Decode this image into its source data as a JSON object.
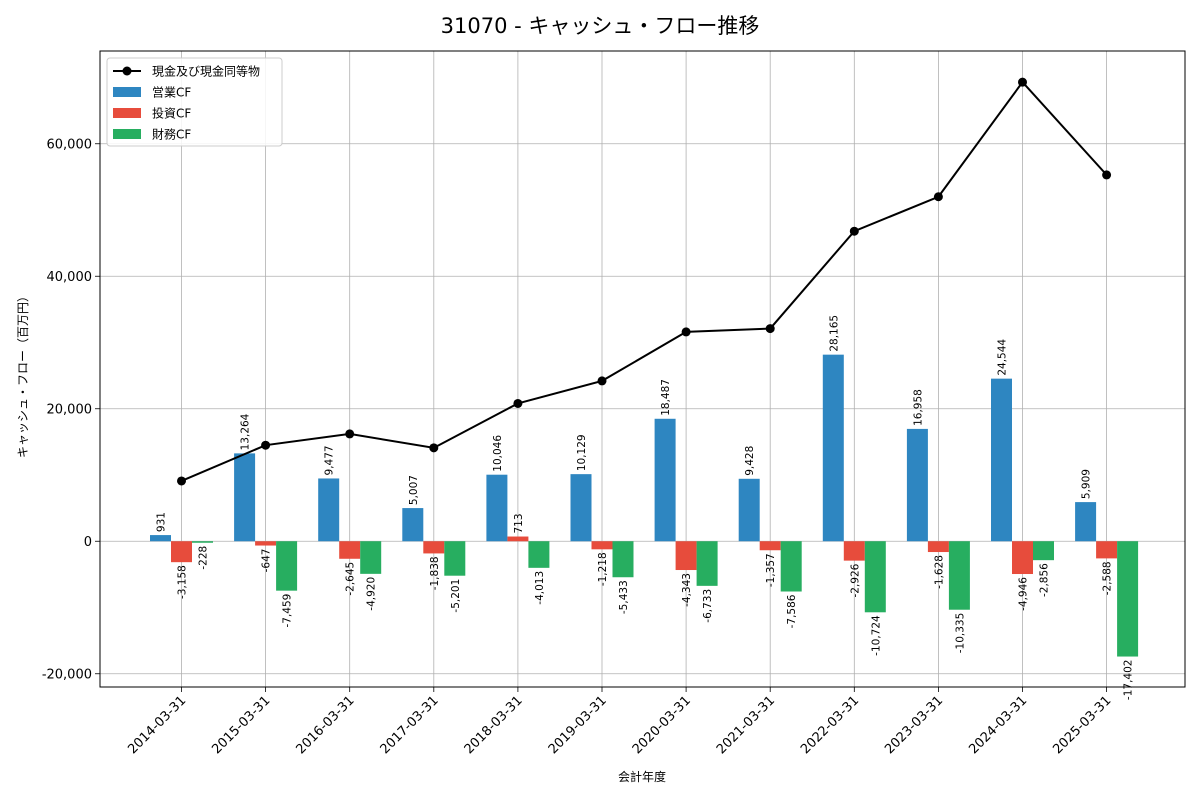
{
  "chart_data": {
    "type": "bar",
    "title": "31070 - キャッシュ・フロー推移",
    "xlabel": "会計年度",
    "ylabel": "キャッシュ・フロー（百万円）",
    "ylim": [
      -22000,
      74000
    ],
    "yticks": [
      -20000,
      0,
      20000,
      40000,
      60000
    ],
    "ytick_labels": [
      "-20,000",
      "0",
      "20,000",
      "40,000",
      "60,000"
    ],
    "grid": true,
    "legend_position": "top-left",
    "categories": [
      "2014-03-31",
      "2015-03-31",
      "2016-03-31",
      "2017-03-31",
      "2018-03-31",
      "2019-03-31",
      "2020-03-31",
      "2021-03-31",
      "2022-03-31",
      "2023-03-31",
      "2024-03-31",
      "2025-03-31"
    ],
    "series": [
      {
        "name": "営業CF",
        "type": "bar",
        "color": "#2e86c1",
        "values": [
          931,
          13264,
          9477,
          5007,
          10046,
          10129,
          18487,
          9428,
          28165,
          16958,
          24544,
          5909
        ],
        "labels": [
          "931",
          "13,264",
          "9,477",
          "5,007",
          "10,046",
          "10,129",
          "18,487",
          "9,428",
          "28,165",
          "16,958",
          "24,544",
          "5,909"
        ]
      },
      {
        "name": "投資CF",
        "type": "bar",
        "color": "#e74c3c",
        "values": [
          -3158,
          -647,
          -2645,
          -1838,
          713,
          -1218,
          -4343,
          -1357,
          -2926,
          -1628,
          -4946,
          -2588
        ],
        "labels": [
          "-3,158",
          "-647",
          "-2,645",
          "-1,838",
          "713",
          "-1,218",
          "-4,343",
          "-1,357",
          "-2,926",
          "-1,628",
          "-4,946",
          "-2,588"
        ]
      },
      {
        "name": "財務CF",
        "type": "bar",
        "color": "#27ae60",
        "values": [
          -228,
          -7459,
          -4920,
          -5201,
          -4013,
          -5433,
          -6733,
          -7586,
          -10724,
          -10335,
          -2856,
          -17402
        ],
        "labels": [
          "-228",
          "-7,459",
          "-4,920",
          "-5,201",
          "-4,013",
          "-5,433",
          "-6,733",
          "-7,586",
          "-10,724",
          "-10,335",
          "-2,856",
          "-17,402"
        ]
      },
      {
        "name": "現金及び現金同等物",
        "type": "line",
        "color": "#000000",
        "values": [
          9100,
          14500,
          16200,
          14100,
          20800,
          24200,
          31600,
          32100,
          46800,
          52000,
          69300,
          55300
        ]
      }
    ]
  }
}
